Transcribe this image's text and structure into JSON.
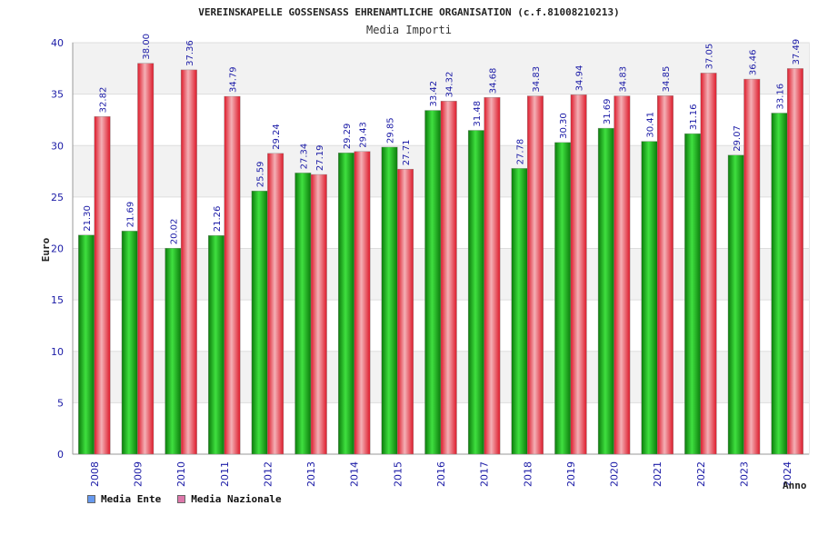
{
  "chart_data": {
    "type": "bar",
    "title": "VEREINSKAPELLE GOSSENSASS EHRENAMTLICHE ORGANISATION (c.f.81008210213)",
    "subtitle": "Media Importi",
    "xlabel": "Anno",
    "ylabel": "Euro",
    "ylim": [
      0,
      40
    ],
    "yticks": [
      0,
      5,
      10,
      15,
      20,
      25,
      30,
      35,
      40
    ],
    "categories": [
      "2008",
      "2009",
      "2010",
      "2011",
      "2012",
      "2013",
      "2014",
      "2015",
      "2016",
      "2017",
      "2018",
      "2019",
      "2020",
      "2021",
      "2022",
      "2023",
      "2024"
    ],
    "series": [
      {
        "name": "Media Ente",
        "color": "#22aa22",
        "values": [
          21.3,
          21.69,
          20.02,
          21.26,
          25.59,
          27.34,
          29.29,
          29.85,
          33.42,
          31.48,
          27.78,
          30.3,
          31.69,
          30.41,
          31.16,
          29.07,
          33.16
        ]
      },
      {
        "name": "Media Nazionale",
        "color": "#ee3344",
        "values": [
          32.82,
          38.0,
          37.36,
          34.79,
          29.24,
          27.19,
          29.43,
          27.71,
          34.32,
          34.68,
          34.83,
          34.94,
          34.83,
          34.85,
          37.05,
          36.46,
          37.49
        ]
      }
    ],
    "legend_colors": [
      "#6699ee",
      "#dd77aa"
    ],
    "grid": true,
    "legend_position": "bottom-left"
  }
}
